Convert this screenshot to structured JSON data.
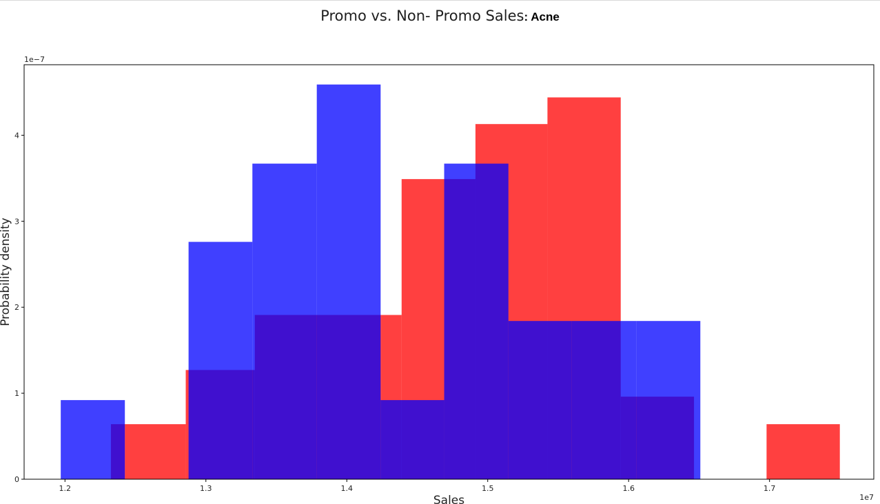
{
  "page": {
    "title": "Promo vs. Non- Promo Sales",
    "title_suffix": ": Acne"
  },
  "chart_data": {
    "type": "histogram",
    "title": "Promo vs. Non- Promo Sales: Acne",
    "xlabel": "Sales",
    "ylabel": "Probability density",
    "x_offset_label": "1e7",
    "y_offset_label": "1e−7",
    "x_scale": 10000000,
    "y_scale": 1e-07,
    "xlim": [
      1.171,
      1.774
    ],
    "ylim": [
      0,
      4.82
    ],
    "x_ticks": [
      1.2,
      1.3,
      1.4,
      1.5,
      1.6,
      1.7
    ],
    "y_ticks": [
      0,
      1,
      2,
      3,
      4
    ],
    "grid": false,
    "legend": "none",
    "series": [
      {
        "color": "#ff0000",
        "alpha": 0.75,
        "bins": [
          {
            "x0": 1.2326,
            "x1": 1.2425,
            "density": 0.64
          },
          {
            "x0": 1.2425,
            "x1": 1.2857,
            "density": 0.64
          },
          {
            "x0": 1.2857,
            "x1": 1.3347,
            "density": 1.27
          },
          {
            "x0": 1.3347,
            "x1": 1.4246,
            "density": 1.91
          },
          {
            "x0": 1.4246,
            "x1": 1.4389,
            "density": 1.91
          },
          {
            "x0": 1.4389,
            "x1": 1.4691,
            "density": 3.49
          },
          {
            "x0": 1.4691,
            "x1": 1.4913,
            "density": 3.49
          },
          {
            "x0": 1.4913,
            "x1": 1.5424,
            "density": 4.13
          },
          {
            "x0": 1.5424,
            "x1": 1.5944,
            "density": 4.44
          },
          {
            "x0": 1.5944,
            "x1": 1.6464,
            "density": 0.96
          },
          {
            "x0": 1.6979,
            "x1": 1.7499,
            "density": 0.64
          }
        ]
      },
      {
        "color": "#0000ff",
        "alpha": 0.75,
        "bins": [
          {
            "x0": 1.197,
            "x1": 1.2425,
            "density": 0.92
          },
          {
            "x0": 1.2425,
            "x1": 1.2877,
            "density": 0.0
          },
          {
            "x0": 1.2877,
            "x1": 1.333,
            "density": 2.76
          },
          {
            "x0": 1.333,
            "x1": 1.3787,
            "density": 3.67
          },
          {
            "x0": 1.3787,
            "x1": 1.424,
            "density": 4.59
          },
          {
            "x0": 1.424,
            "x1": 1.4691,
            "density": 0.92
          },
          {
            "x0": 1.4691,
            "x1": 1.5147,
            "density": 3.67
          },
          {
            "x0": 1.5147,
            "x1": 1.5597,
            "density": 1.84
          },
          {
            "x0": 1.5597,
            "x1": 1.6054,
            "density": 1.84
          },
          {
            "x0": 1.6054,
            "x1": 1.6509,
            "density": 1.84
          }
        ]
      }
    ]
  }
}
